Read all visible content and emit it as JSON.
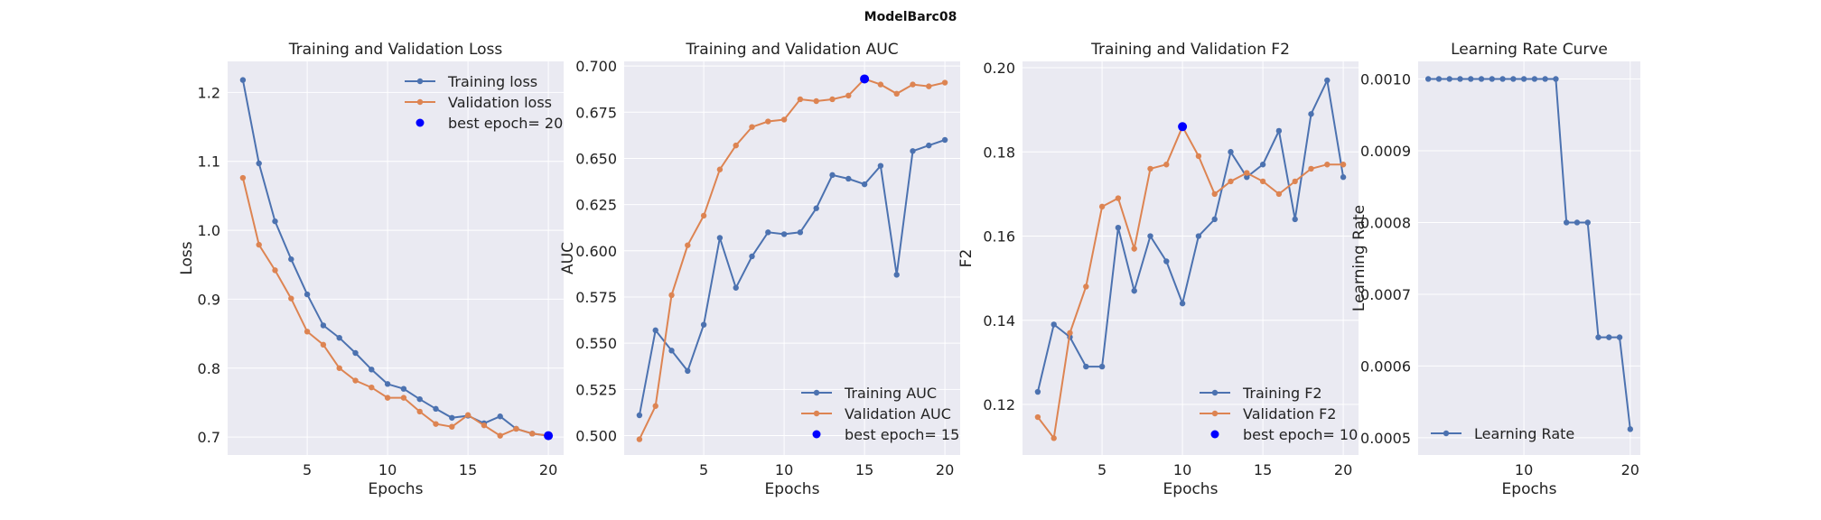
{
  "figure": {
    "title": "ModelBarc08"
  },
  "colors": {
    "training": "#4c72b0",
    "validation": "#dd8452",
    "best": "#0000ff",
    "plot_bg": "#eaeaf2",
    "grid": "#ffffff"
  },
  "chart_data": [
    {
      "type": "line",
      "title": "Training and Validation Loss",
      "xlabel": "Epochs",
      "ylabel": "Loss",
      "xlim": [
        0.05,
        20.95
      ],
      "ylim": [
        0.674,
        1.245
      ],
      "xticks": [
        5,
        10,
        15,
        20
      ],
      "yticks": [
        0.7,
        0.8,
        0.9,
        1.0,
        1.1,
        1.2
      ],
      "ytick_labels": [
        "0.7",
        "0.8",
        "0.9",
        "1.0",
        "1.1",
        "1.2"
      ],
      "legend_position": "top-right",
      "x": [
        1,
        2,
        3,
        4,
        5,
        6,
        7,
        8,
        9,
        10,
        11,
        12,
        13,
        14,
        15,
        16,
        17,
        18,
        19,
        20
      ],
      "series": [
        {
          "name": "Training loss",
          "color": "#4c72b0",
          "values": [
            1.218,
            1.097,
            1.013,
            0.958,
            0.907,
            0.862,
            0.844,
            0.822,
            0.798,
            0.777,
            0.77,
            0.755,
            0.741,
            0.728,
            0.731,
            0.72,
            0.73,
            0.712,
            0.705,
            0.702
          ]
        },
        {
          "name": "Validation loss",
          "color": "#dd8452",
          "values": [
            1.076,
            0.979,
            0.942,
            0.901,
            0.853,
            0.834,
            0.8,
            0.782,
            0.772,
            0.757,
            0.757,
            0.737,
            0.719,
            0.715,
            0.732,
            0.717,
            0.702,
            0.712,
            0.705,
            0.702
          ]
        }
      ],
      "best_point": {
        "label": "best epoch= 20",
        "x": 20,
        "y": 0.702
      }
    },
    {
      "type": "line",
      "title": "Training and Validation AUC",
      "xlabel": "Epochs",
      "ylabel": "AUC",
      "xlim": [
        0.05,
        20.95
      ],
      "ylim": [
        0.4895,
        0.7025
      ],
      "xticks": [
        5,
        10,
        15,
        20
      ],
      "yticks": [
        0.5,
        0.525,
        0.55,
        0.575,
        0.6,
        0.625,
        0.65,
        0.675,
        0.7
      ],
      "ytick_labels": [
        "0.500",
        "0.525",
        "0.550",
        "0.575",
        "0.600",
        "0.625",
        "0.650",
        "0.675",
        "0.700"
      ],
      "legend_position": "bottom-right",
      "x": [
        1,
        2,
        3,
        4,
        5,
        6,
        7,
        8,
        9,
        10,
        11,
        12,
        13,
        14,
        15,
        16,
        17,
        18,
        19,
        20
      ],
      "series": [
        {
          "name": "Training AUC",
          "color": "#4c72b0",
          "values": [
            0.511,
            0.557,
            0.546,
            0.535,
            0.56,
            0.607,
            0.58,
            0.597,
            0.61,
            0.609,
            0.61,
            0.623,
            0.641,
            0.639,
            0.636,
            0.646,
            0.587,
            0.654,
            0.657,
            0.66
          ]
        },
        {
          "name": "Validation AUC",
          "color": "#dd8452",
          "values": [
            0.498,
            0.516,
            0.576,
            0.603,
            0.619,
            0.644,
            0.657,
            0.667,
            0.67,
            0.671,
            0.682,
            0.681,
            0.682,
            0.684,
            0.693,
            0.69,
            0.685,
            0.69,
            0.689,
            0.691
          ]
        }
      ],
      "best_point": {
        "label": "best epoch= 15",
        "x": 15,
        "y": 0.693
      }
    },
    {
      "type": "line",
      "title": "Training and Validation F2",
      "xlabel": "Epochs",
      "ylabel": "F2",
      "xlim": [
        0.05,
        20.95
      ],
      "ylim": [
        0.108,
        0.2015
      ],
      "xticks": [
        5,
        10,
        15,
        20
      ],
      "yticks": [
        0.12,
        0.14,
        0.16,
        0.18,
        0.2
      ],
      "ytick_labels": [
        "0.12",
        "0.14",
        "0.16",
        "0.18",
        "0.20"
      ],
      "legend_position": "bottom-right",
      "x": [
        1,
        2,
        3,
        4,
        5,
        6,
        7,
        8,
        9,
        10,
        11,
        12,
        13,
        14,
        15,
        16,
        17,
        18,
        19,
        20
      ],
      "series": [
        {
          "name": "Training F2",
          "color": "#4c72b0",
          "values": [
            0.123,
            0.139,
            0.136,
            0.129,
            0.129,
            0.162,
            0.147,
            0.16,
            0.154,
            0.144,
            0.16,
            0.164,
            0.18,
            0.174,
            0.177,
            0.185,
            0.164,
            0.189,
            0.197,
            0.174
          ]
        },
        {
          "name": "Validation F2",
          "color": "#dd8452",
          "values": [
            0.117,
            0.112,
            0.137,
            0.148,
            0.167,
            0.169,
            0.157,
            0.176,
            0.177,
            0.186,
            0.179,
            0.17,
            0.173,
            0.175,
            0.173,
            0.17,
            0.173,
            0.176,
            0.177,
            0.177
          ]
        }
      ],
      "best_point": {
        "label": "best epoch= 10",
        "x": 10,
        "y": 0.186
      }
    },
    {
      "type": "line",
      "title": "Learning Rate Curve",
      "xlabel": "Epochs",
      "ylabel": "Learning Rate",
      "xlim": [
        0.05,
        20.95
      ],
      "ylim": [
        0.000476,
        0.0010245
      ],
      "xticks": [
        10,
        20
      ],
      "yticks": [
        0.0005,
        0.0006,
        0.0007,
        0.0008,
        0.0009,
        0.001
      ],
      "ytick_labels": [
        "0.0005",
        "0.0006",
        "0.0007",
        "0.0008",
        "0.0009",
        "0.0010"
      ],
      "legend_position": "bottom-left",
      "x": [
        1,
        2,
        3,
        4,
        5,
        6,
        7,
        8,
        9,
        10,
        11,
        12,
        13,
        14,
        15,
        16,
        17,
        18,
        19,
        20
      ],
      "series": [
        {
          "name": "Learning Rate",
          "color": "#4c72b0",
          "values": [
            0.001,
            0.001,
            0.001,
            0.001,
            0.001,
            0.001,
            0.001,
            0.001,
            0.001,
            0.001,
            0.001,
            0.001,
            0.001,
            0.0008,
            0.0008,
            0.0008,
            0.00064,
            0.00064,
            0.00064,
            0.000512
          ]
        }
      ]
    }
  ]
}
